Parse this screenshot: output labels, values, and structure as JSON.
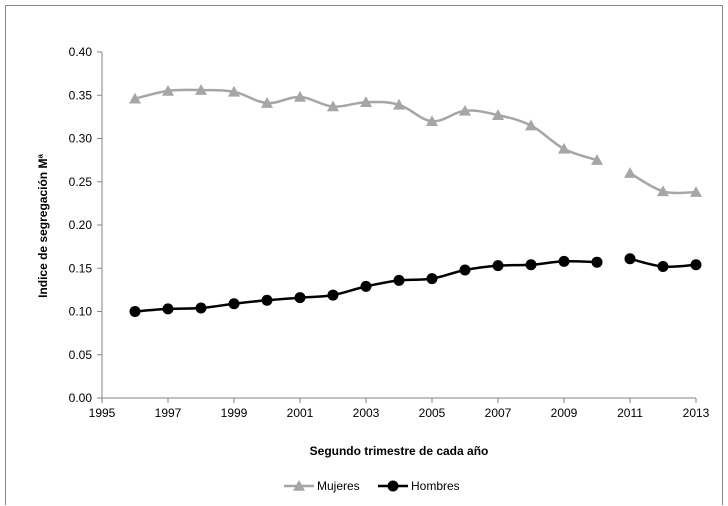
{
  "chart_data": {
    "type": "line",
    "xlabel": "Segundo trimestre de cada año",
    "ylabel": "Indice de segregación Mª",
    "xlim": [
      1995,
      2013
    ],
    "ylim": [
      0,
      0.4
    ],
    "xticks": [
      1995,
      1997,
      1999,
      2001,
      2003,
      2005,
      2007,
      2009,
      2011,
      2013
    ],
    "yticks": [
      0.0,
      0.05,
      0.1,
      0.15,
      0.2,
      0.25,
      0.3,
      0.35,
      0.4
    ],
    "xtick_labels": [
      "1995",
      "1997",
      "1999",
      "2001",
      "2003",
      "2005",
      "2007",
      "2009",
      "2011",
      "2013"
    ],
    "ytick_labels": [
      "0.00",
      "0.05",
      "0.10",
      "0.15",
      "0.20",
      "0.25",
      "0.30",
      "0.35",
      "0.40"
    ],
    "grid": false,
    "legend": "bottom",
    "series": [
      {
        "name": "Mujeres",
        "color": "#a6a6a6",
        "marker": "triangle",
        "x": [
          1996,
          1997,
          1998,
          1999,
          2000,
          2001,
          2002,
          2003,
          2004,
          2005,
          2006,
          2007,
          2008,
          2009,
          2010,
          2011,
          2012,
          2013
        ],
        "y": [
          0.346,
          0.355,
          0.356,
          0.354,
          0.341,
          0.348,
          0.337,
          0.342,
          0.339,
          0.32,
          0.332,
          0.327,
          0.315,
          0.288,
          0.275,
          0.26,
          0.239,
          0.238
        ],
        "segments": [
          [
            0,
            14
          ],
          [
            15,
            17
          ]
        ]
      },
      {
        "name": "Hombres",
        "color": "#000000",
        "marker": "circle",
        "x": [
          1996,
          1997,
          1998,
          1999,
          2000,
          2001,
          2002,
          2003,
          2004,
          2005,
          2006,
          2007,
          2008,
          2009,
          2010,
          2011,
          2012,
          2013
        ],
        "y": [
          0.1,
          0.103,
          0.104,
          0.109,
          0.113,
          0.116,
          0.119,
          0.129,
          0.136,
          0.138,
          0.148,
          0.153,
          0.154,
          0.158,
          0.157,
          0.161,
          0.152,
          0.154
        ],
        "segments": [
          [
            0,
            14
          ],
          [
            15,
            17
          ]
        ]
      }
    ]
  }
}
